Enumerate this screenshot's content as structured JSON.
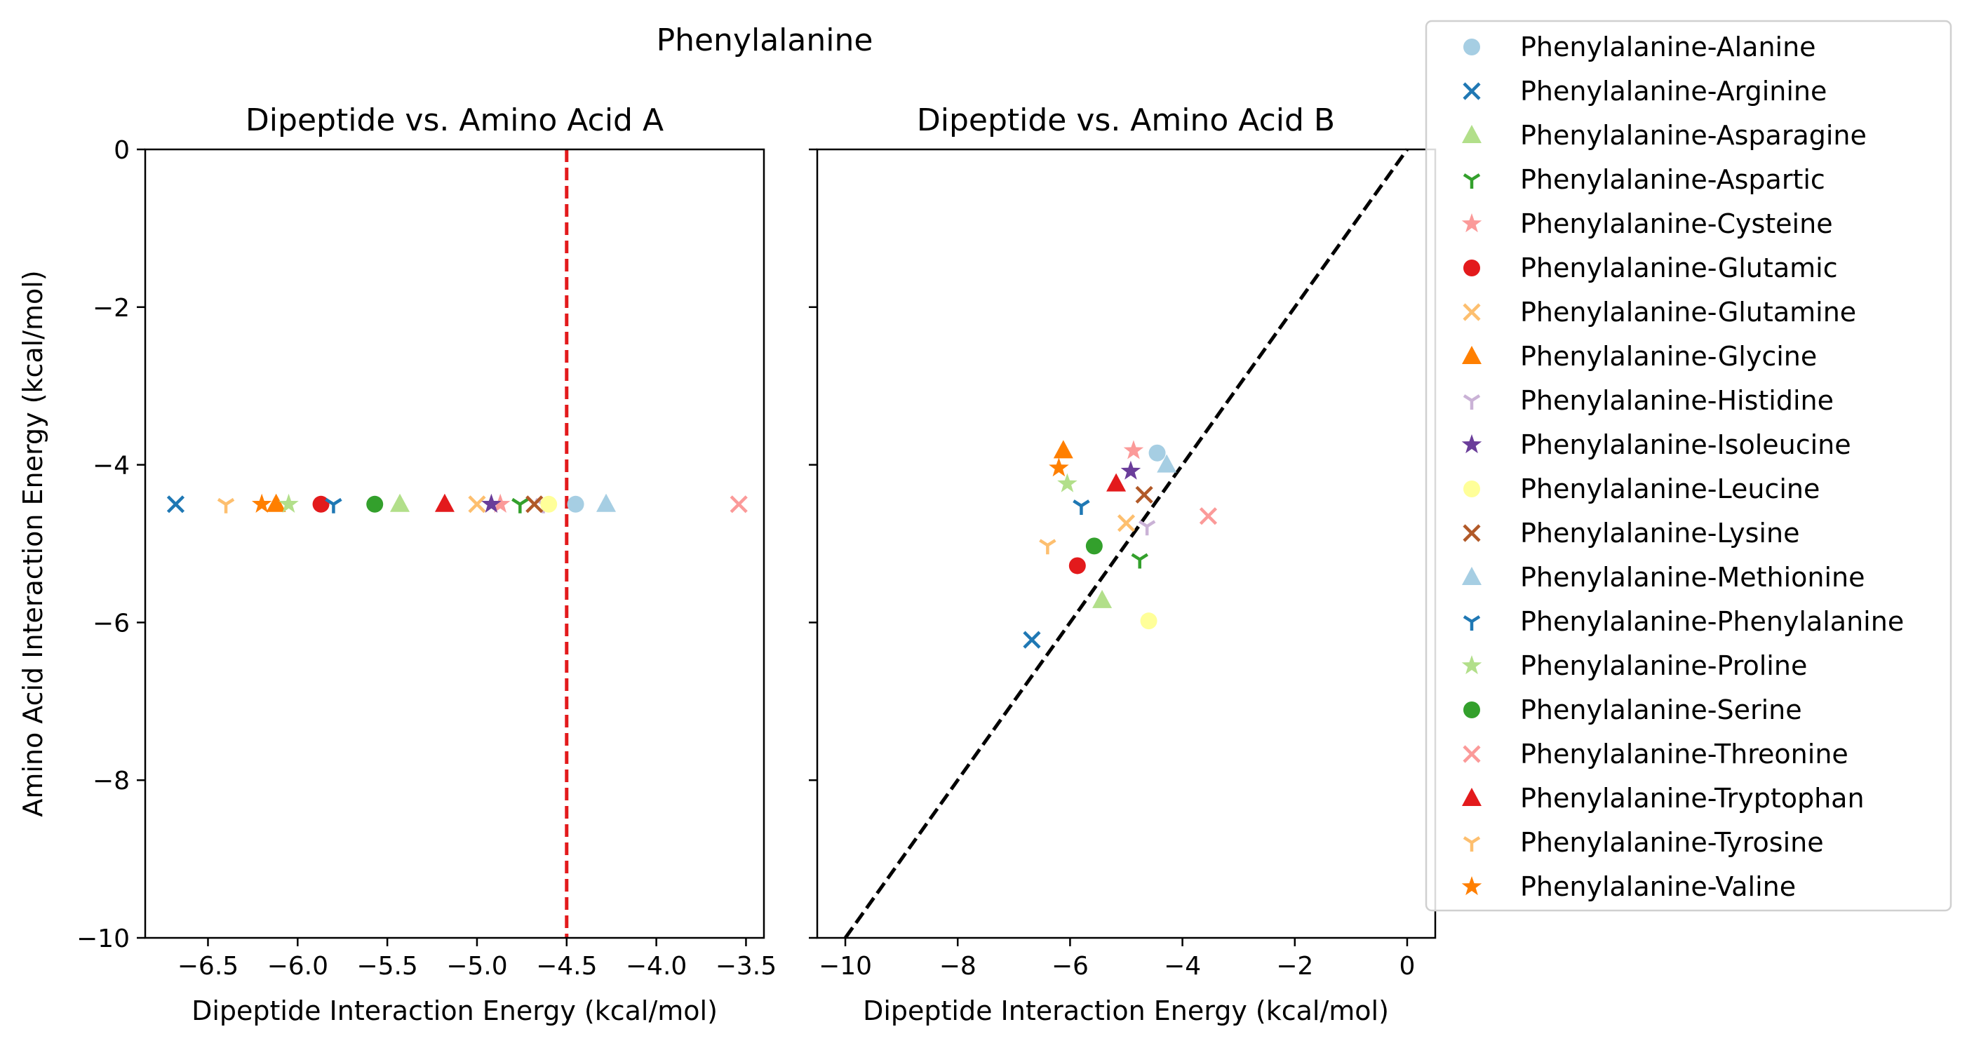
{
  "figure_title": "Phenylalanine",
  "chart_data": [
    {
      "type": "scatter",
      "title": "Dipeptide vs. Amino Acid A",
      "xlabel": "Dipeptide Interaction Energy (kcal/mol)",
      "ylabel": "Amino Acid Interaction Energy (kcal/mol)",
      "xlim": [
        -6.85,
        -3.4
      ],
      "ylim": [
        -10,
        0
      ],
      "xticks": [
        -6.5,
        -6.0,
        -5.5,
        -5.0,
        -4.5,
        -4.0,
        -3.5
      ],
      "xtick_labels": [
        "−6.5",
        "−6.0",
        "−5.5",
        "−5.0",
        "−4.5",
        "−4.0",
        "−3.5"
      ],
      "yticks": [
        0,
        -2,
        -4,
        -6,
        -8,
        -10
      ],
      "ytick_labels": [
        "0",
        "−2",
        "−4",
        "−6",
        "−8",
        "−10"
      ],
      "reference_line": {
        "type": "vertical",
        "x": -4.5,
        "color": "#e31a1c",
        "style": "dashed"
      },
      "points": [
        {
          "series": "Phenylalanine-Alanine",
          "x": -4.45,
          "y": -4.5
        },
        {
          "series": "Phenylalanine-Arginine",
          "x": -6.68,
          "y": -4.5
        },
        {
          "series": "Phenylalanine-Asparagine",
          "x": -5.43,
          "y": -4.5
        },
        {
          "series": "Phenylalanine-Aspartic",
          "x": -4.76,
          "y": -4.5
        },
        {
          "series": "Phenylalanine-Cysteine",
          "x": -4.87,
          "y": -4.5
        },
        {
          "series": "Phenylalanine-Glutamic",
          "x": -5.87,
          "y": -4.5
        },
        {
          "series": "Phenylalanine-Glutamine",
          "x": -5.0,
          "y": -4.5
        },
        {
          "series": "Phenylalanine-Glycine",
          "x": -6.12,
          "y": -4.5
        },
        {
          "series": "Phenylalanine-Histidine",
          "x": -4.63,
          "y": -4.5
        },
        {
          "series": "Phenylalanine-Isoleucine",
          "x": -4.92,
          "y": -4.5
        },
        {
          "series": "Phenylalanine-Leucine",
          "x": -4.6,
          "y": -4.5
        },
        {
          "series": "Phenylalanine-Lysine",
          "x": -4.68,
          "y": -4.5
        },
        {
          "series": "Phenylalanine-Methionine",
          "x": -4.28,
          "y": -4.5
        },
        {
          "series": "Phenylalanine-Phenylalanine",
          "x": -5.8,
          "y": -4.5
        },
        {
          "series": "Phenylalanine-Proline",
          "x": -6.05,
          "y": -4.5
        },
        {
          "series": "Phenylalanine-Serine",
          "x": -5.57,
          "y": -4.5
        },
        {
          "series": "Phenylalanine-Threonine",
          "x": -3.54,
          "y": -4.5
        },
        {
          "series": "Phenylalanine-Tryptophan",
          "x": -5.18,
          "y": -4.5
        },
        {
          "series": "Phenylalanine-Tyrosine",
          "x": -6.4,
          "y": -4.5
        },
        {
          "series": "Phenylalanine-Valine",
          "x": -6.2,
          "y": -4.5
        }
      ]
    },
    {
      "type": "scatter",
      "title": "Dipeptide vs. Amino Acid B",
      "xlabel": "Dipeptide Interaction Energy (kcal/mol)",
      "ylabel": "",
      "xlim": [
        -10.5,
        0.5
      ],
      "ylim": [
        -10,
        0
      ],
      "xticks": [
        -10,
        -8,
        -6,
        -4,
        -2,
        0
      ],
      "xtick_labels": [
        "−10",
        "−8",
        "−6",
        "−4",
        "−2",
        "0"
      ],
      "yticks": [
        0,
        -2,
        -4,
        -6,
        -8,
        -10
      ],
      "ytick_labels": [],
      "reference_line": {
        "type": "diagonal",
        "from": [
          -10,
          -10
        ],
        "to": [
          0,
          0
        ],
        "color": "#000000",
        "style": "dashed"
      },
      "points": [
        {
          "series": "Phenylalanine-Alanine",
          "x": -4.45,
          "y": -3.85
        },
        {
          "series": "Phenylalanine-Arginine",
          "x": -6.68,
          "y": -6.22
        },
        {
          "series": "Phenylalanine-Asparagine",
          "x": -5.43,
          "y": -5.72
        },
        {
          "series": "Phenylalanine-Aspartic",
          "x": -4.76,
          "y": -5.2
        },
        {
          "series": "Phenylalanine-Cysteine",
          "x": -4.87,
          "y": -3.82
        },
        {
          "series": "Phenylalanine-Glutamic",
          "x": -5.87,
          "y": -5.28
        },
        {
          "series": "Phenylalanine-Glutamine",
          "x": -5.0,
          "y": -4.74
        },
        {
          "series": "Phenylalanine-Glycine",
          "x": -6.12,
          "y": -3.82
        },
        {
          "series": "Phenylalanine-Histidine",
          "x": -4.63,
          "y": -4.78
        },
        {
          "series": "Phenylalanine-Isoleucine",
          "x": -4.92,
          "y": -4.08
        },
        {
          "series": "Phenylalanine-Leucine",
          "x": -4.6,
          "y": -5.98
        },
        {
          "series": "Phenylalanine-Lysine",
          "x": -4.68,
          "y": -4.38
        },
        {
          "series": "Phenylalanine-Methionine",
          "x": -4.28,
          "y": -4.0
        },
        {
          "series": "Phenylalanine-Phenylalanine",
          "x": -5.8,
          "y": -4.52
        },
        {
          "series": "Phenylalanine-Proline",
          "x": -6.05,
          "y": -4.24
        },
        {
          "series": "Phenylalanine-Serine",
          "x": -5.57,
          "y": -5.03
        },
        {
          "series": "Phenylalanine-Threonine",
          "x": -3.54,
          "y": -4.65
        },
        {
          "series": "Phenylalanine-Tryptophan",
          "x": -5.18,
          "y": -4.24
        },
        {
          "series": "Phenylalanine-Tyrosine",
          "x": -6.4,
          "y": -5.02
        },
        {
          "series": "Phenylalanine-Valine",
          "x": -6.2,
          "y": -4.04
        }
      ]
    }
  ],
  "legend": {
    "placement": "right",
    "entries": [
      {
        "label": "Phenylalanine-Alanine",
        "marker": "circle",
        "color": "#a6cee3"
      },
      {
        "label": "Phenylalanine-Arginine",
        "marker": "x",
        "color": "#1f78b4"
      },
      {
        "label": "Phenylalanine-Asparagine",
        "marker": "triangle",
        "color": "#b2df8a"
      },
      {
        "label": "Phenylalanine-Aspartic",
        "marker": "tri_down",
        "color": "#33a02c"
      },
      {
        "label": "Phenylalanine-Cysteine",
        "marker": "star",
        "color": "#fb9a99"
      },
      {
        "label": "Phenylalanine-Glutamic",
        "marker": "circle",
        "color": "#e31a1c"
      },
      {
        "label": "Phenylalanine-Glutamine",
        "marker": "x",
        "color": "#fdbf6f"
      },
      {
        "label": "Phenylalanine-Glycine",
        "marker": "triangle",
        "color": "#ff7f00"
      },
      {
        "label": "Phenylalanine-Histidine",
        "marker": "tri_down",
        "color": "#cab2d6"
      },
      {
        "label": "Phenylalanine-Isoleucine",
        "marker": "star",
        "color": "#6a3d9a"
      },
      {
        "label": "Phenylalanine-Leucine",
        "marker": "circle",
        "color": "#ffff99"
      },
      {
        "label": "Phenylalanine-Lysine",
        "marker": "x",
        "color": "#b15928"
      },
      {
        "label": "Phenylalanine-Methionine",
        "marker": "triangle",
        "color": "#a6cee3"
      },
      {
        "label": "Phenylalanine-Phenylalanine",
        "marker": "tri_down",
        "color": "#1f78b4"
      },
      {
        "label": "Phenylalanine-Proline",
        "marker": "star",
        "color": "#b2df8a"
      },
      {
        "label": "Phenylalanine-Serine",
        "marker": "circle",
        "color": "#33a02c"
      },
      {
        "label": "Phenylalanine-Threonine",
        "marker": "x",
        "color": "#fb9a99"
      },
      {
        "label": "Phenylalanine-Tryptophan",
        "marker": "triangle",
        "color": "#e31a1c"
      },
      {
        "label": "Phenylalanine-Tyrosine",
        "marker": "tri_down",
        "color": "#fdbf6f"
      },
      {
        "label": "Phenylalanine-Valine",
        "marker": "star",
        "color": "#ff7f00"
      }
    ]
  }
}
